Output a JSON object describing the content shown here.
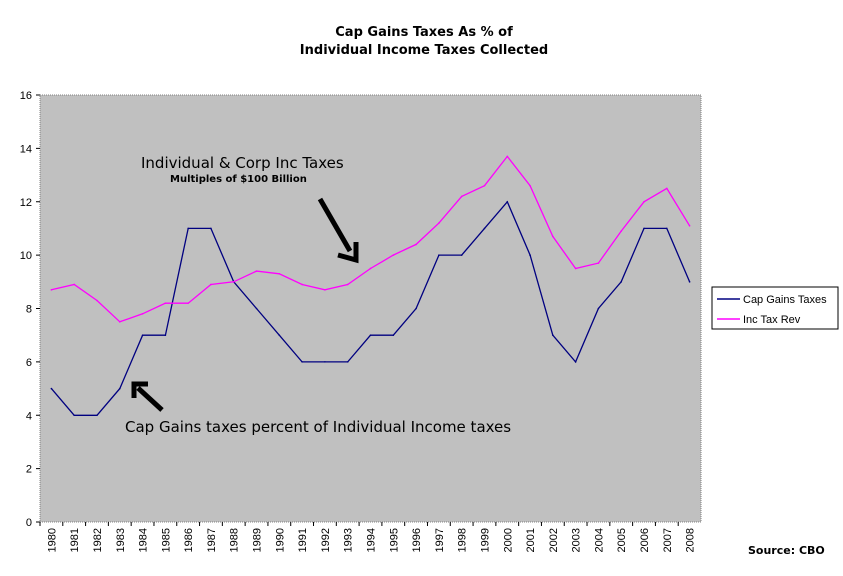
{
  "chart_data": {
    "type": "line",
    "title": [
      "Cap Gains Taxes As % of",
      "Individual Income Taxes Collected"
    ],
    "xlabel": "",
    "ylabel": "",
    "ylim": [
      0,
      16
    ],
    "yticks": [
      "0",
      "2",
      "4",
      "6",
      "8",
      "10",
      "12",
      "14",
      "16"
    ],
    "categories": [
      "1980",
      "1981",
      "1982",
      "1983",
      "1984",
      "1985",
      "1986",
      "1987",
      "1988",
      "1989",
      "1990",
      "1991",
      "1992",
      "1993",
      "1994",
      "1995",
      "1996",
      "1997",
      "1998",
      "1999",
      "2000",
      "2001",
      "2002",
      "2003",
      "2004",
      "2005",
      "2006",
      "2007",
      "2008"
    ],
    "series": [
      {
        "name": "Cap Gains Taxes",
        "color": "#000080",
        "values": [
          5,
          4,
          4,
          5,
          7,
          7,
          11,
          11,
          9,
          8,
          7,
          6,
          6,
          6,
          7,
          7,
          8,
          10,
          10,
          11,
          12,
          10,
          7,
          6,
          8,
          9,
          11,
          11,
          9
        ]
      },
      {
        "name": "Inc Tax Rev",
        "color": "#ff00ff",
        "values": [
          8.7,
          8.9,
          8.3,
          7.5,
          7.8,
          8.2,
          8.2,
          8.9,
          9.0,
          9.4,
          9.3,
          8.9,
          8.7,
          8.9,
          9.5,
          10.0,
          10.4,
          11.2,
          12.2,
          12.6,
          13.7,
          12.6,
          10.7,
          9.5,
          9.7,
          10.9,
          12.0,
          12.5,
          11.1
        ]
      }
    ],
    "grid": false,
    "plot_background": "#c0c0c0",
    "legend_position": "right",
    "annotations": [
      {
        "text": "Individual & Corp Inc Taxes",
        "subtext": "Multiples of $100 Billion"
      },
      {
        "text": "Cap Gains taxes percent of Individual Income taxes"
      }
    ],
    "source": "Source: CBO"
  }
}
